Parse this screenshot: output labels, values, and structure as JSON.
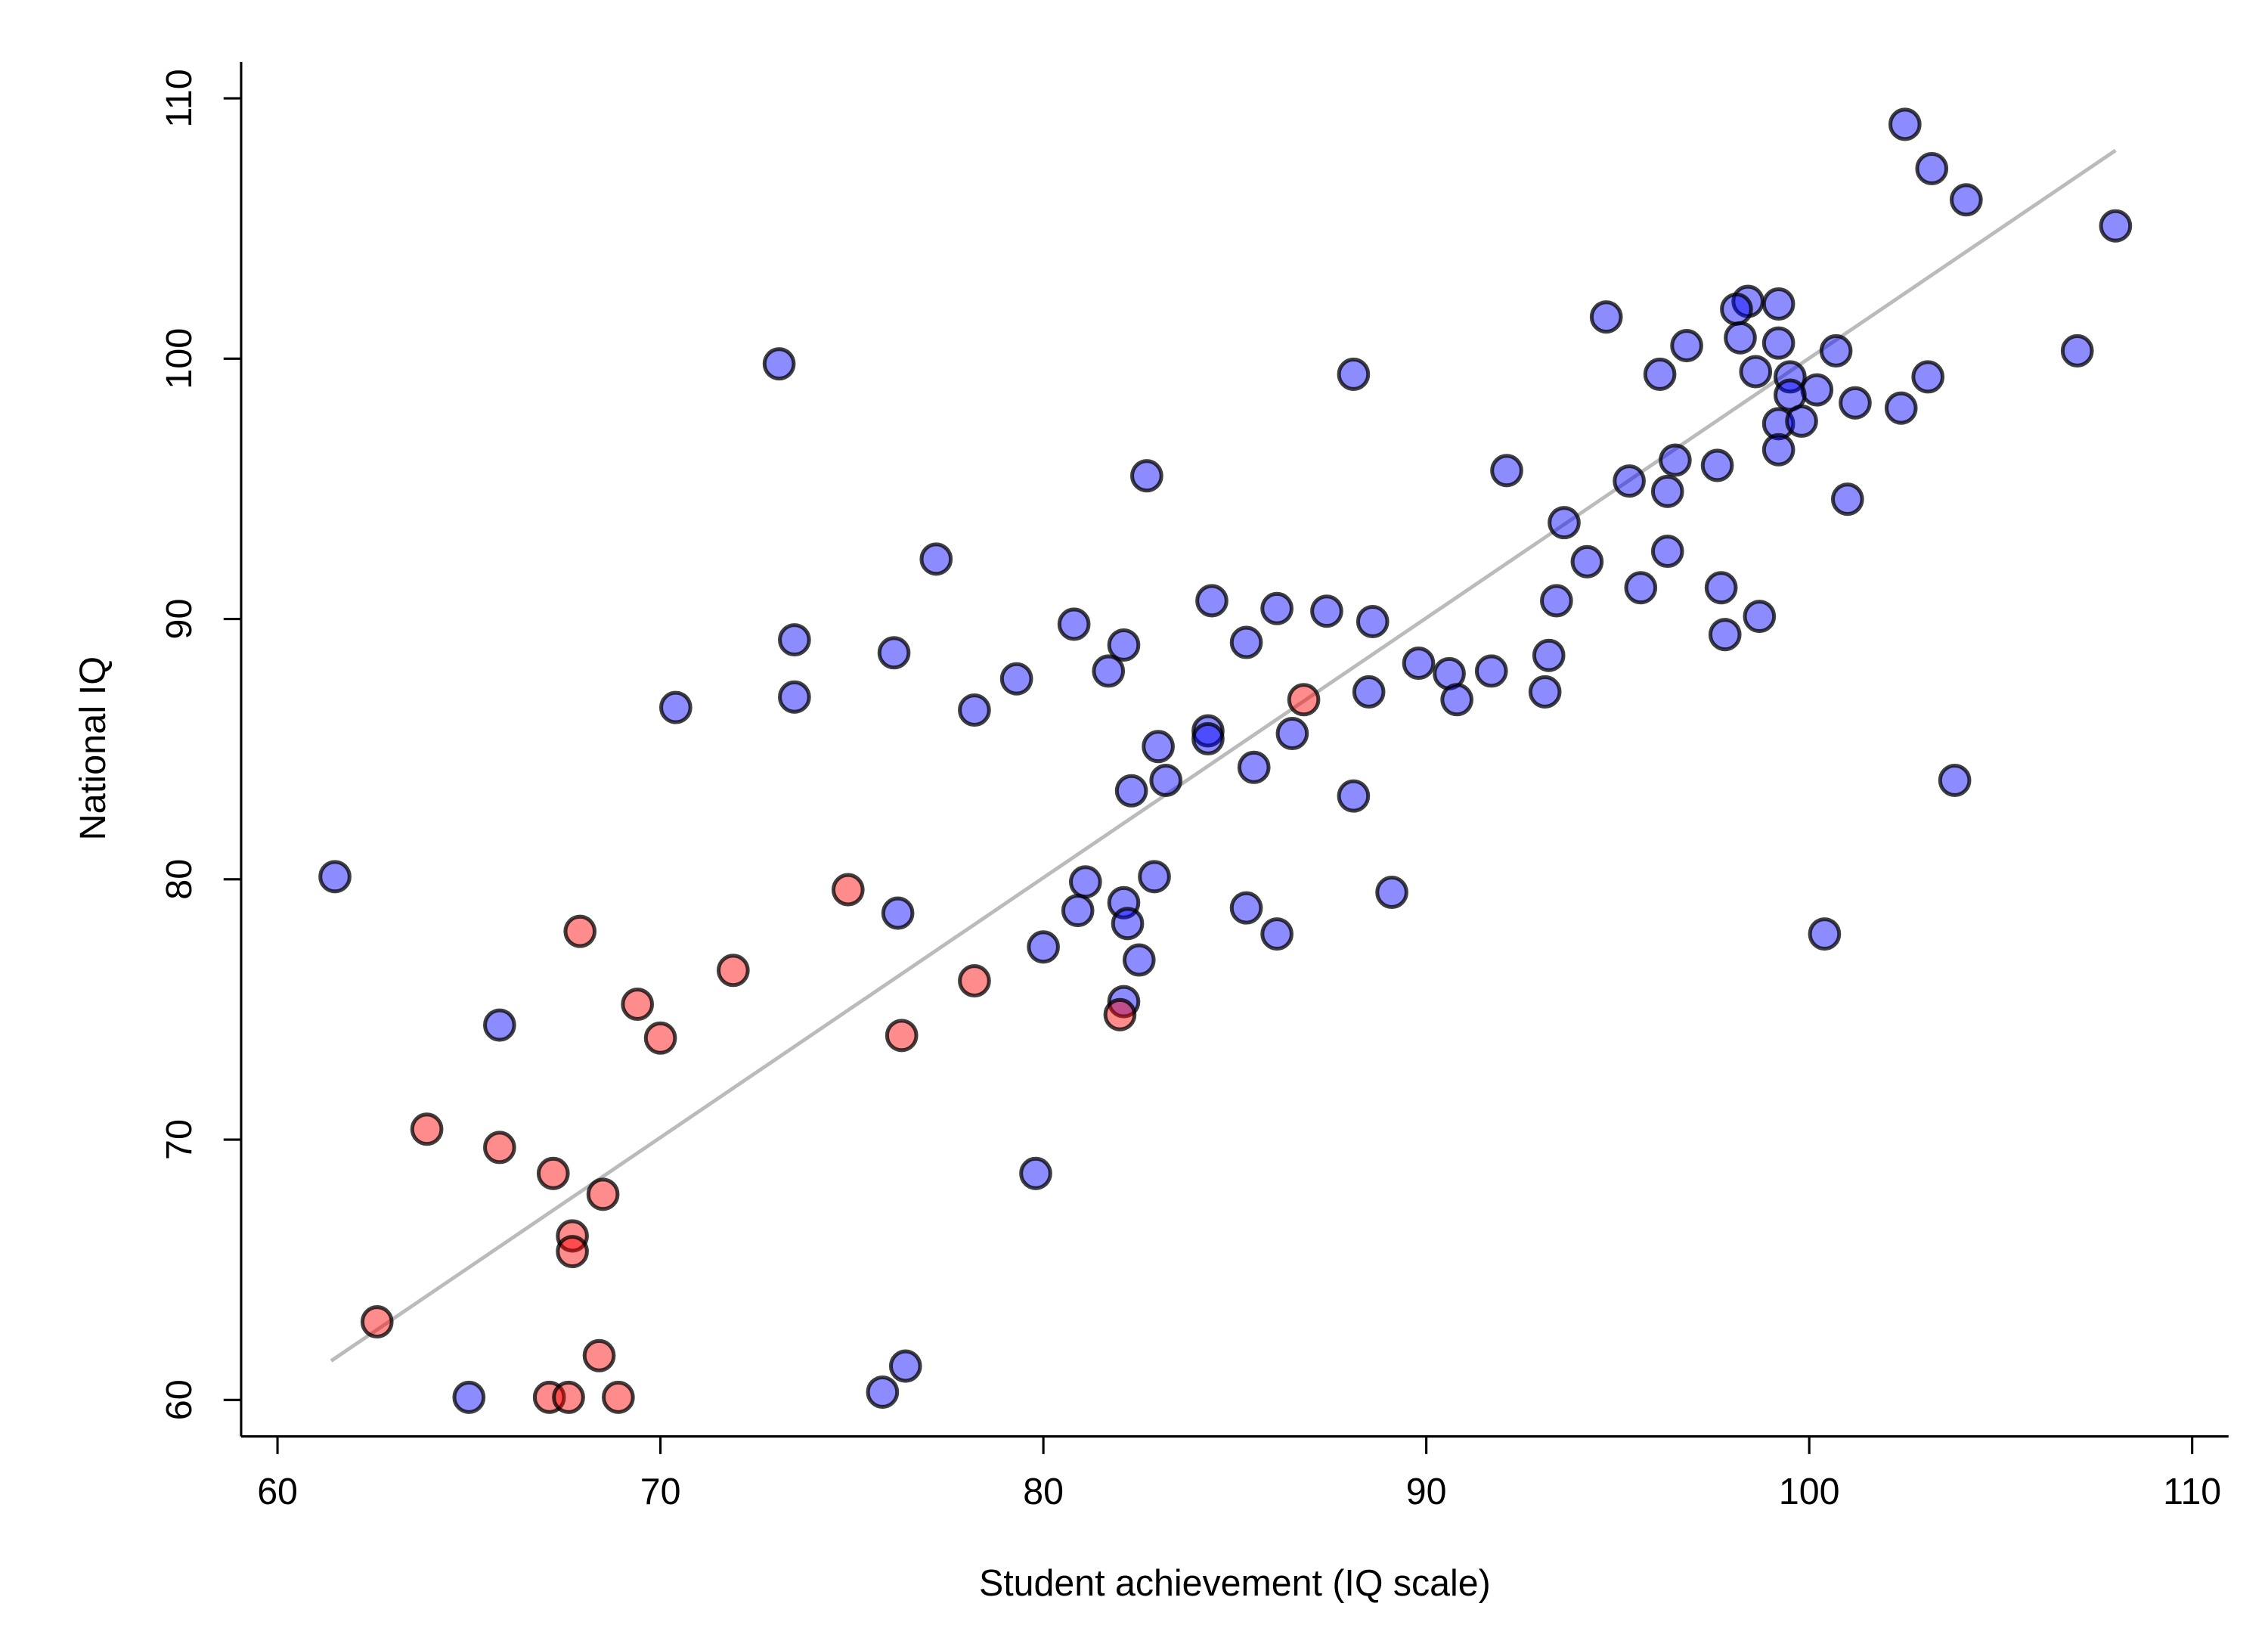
{
  "chart_data": {
    "type": "scatter",
    "x_label": "Student achievement (IQ scale)",
    "y_label": "National IQ",
    "xlim": [
      59.05,
      110.95
    ],
    "ylim": [
      58.6,
      111.4
    ],
    "xticks": [
      60,
      70,
      80,
      90,
      100,
      110
    ],
    "yticks": [
      60,
      70,
      80,
      90,
      100,
      110
    ],
    "trend_line": {
      "color": "#bbbbbb",
      "x": [
        61.4,
        108
      ],
      "y": [
        61.5,
        108
      ]
    },
    "series": [
      {
        "color": "#0000ff",
        "x": [
          102.5,
          103.2,
          104.1,
          108.0,
          94.7,
          98.4,
          98.1,
          99.2,
          98.2,
          99.2,
          96.8,
          100.7,
          107.0,
          73.1,
          88.1,
          96.1,
          98.6,
          99.5,
          103.1,
          100.2,
          99.5,
          101.2,
          102.4,
          99.2,
          99.8,
          99.2,
          96.5,
          97.6,
          82.7,
          92.1,
          95.3,
          96.3,
          101.0,
          93.6,
          77.2,
          96.3,
          94.2,
          95.6,
          97.7,
          93.4,
          84.4,
          86.1,
          87.4,
          98.7,
          80.8,
          88.6,
          97.8,
          73.5,
          82.1,
          85.3,
          76.1,
          93.2,
          89.8,
          81.7,
          91.7,
          90.6,
          79.3,
          88.5,
          93.1,
          73.5,
          90.8,
          70.4,
          78.2,
          84.3,
          86.5,
          84.3,
          83.0,
          85.5,
          83.2,
          103.8,
          82.3,
          88.1,
          61.5,
          82.9,
          81.1,
          89.1,
          82.1,
          85.3,
          76.2,
          80.9,
          82.2,
          86.1,
          100.4,
          80.0,
          82.5,
          82.1,
          65.8,
          79.8,
          76.4,
          75.8,
          65.0
        ],
        "y": [
          109.0,
          107.3,
          106.1,
          105.1,
          101.6,
          102.2,
          101.9,
          102.1,
          100.8,
          100.6,
          100.5,
          100.3,
          100.3,
          99.8,
          99.4,
          99.4,
          99.5,
          99.3,
          99.3,
          98.8,
          98.6,
          98.3,
          98.1,
          97.5,
          97.6,
          96.5,
          96.1,
          95.9,
          95.5,
          95.7,
          95.3,
          94.9,
          94.6,
          93.7,
          92.3,
          92.6,
          92.2,
          91.2,
          91.2,
          90.7,
          90.7,
          90.4,
          90.3,
          90.1,
          89.8,
          89.9,
          89.4,
          89.2,
          89.0,
          89.1,
          88.7,
          88.6,
          88.3,
          88.0,
          88.0,
          87.9,
          87.7,
          87.2,
          87.2,
          87.0,
          86.9,
          86.6,
          86.5,
          85.7,
          85.6,
          85.4,
          85.1,
          84.3,
          83.8,
          83.8,
          83.4,
          83.2,
          80.1,
          80.1,
          79.9,
          79.5,
          79.1,
          78.9,
          78.7,
          78.8,
          78.3,
          77.9,
          77.9,
          77.4,
          76.9,
          75.3,
          74.4,
          68.7,
          61.3,
          60.3,
          60.1
        ]
      },
      {
        "color": "#ff0000",
        "x": [
          86.8,
          74.9,
          67.9,
          71.9,
          78.2,
          69.4,
          82.0,
          70.0,
          76.3,
          63.9,
          65.8,
          67.2,
          68.5,
          67.7,
          67.7,
          62.6,
          68.4,
          67.1,
          67.6,
          68.9
        ],
        "y": [
          86.9,
          79.6,
          78.0,
          76.5,
          76.1,
          75.2,
          74.8,
          73.9,
          74.0,
          70.4,
          69.7,
          68.7,
          67.9,
          66.3,
          65.7,
          63.0,
          61.7,
          60.1,
          60.1,
          60.1
        ]
      }
    ]
  }
}
